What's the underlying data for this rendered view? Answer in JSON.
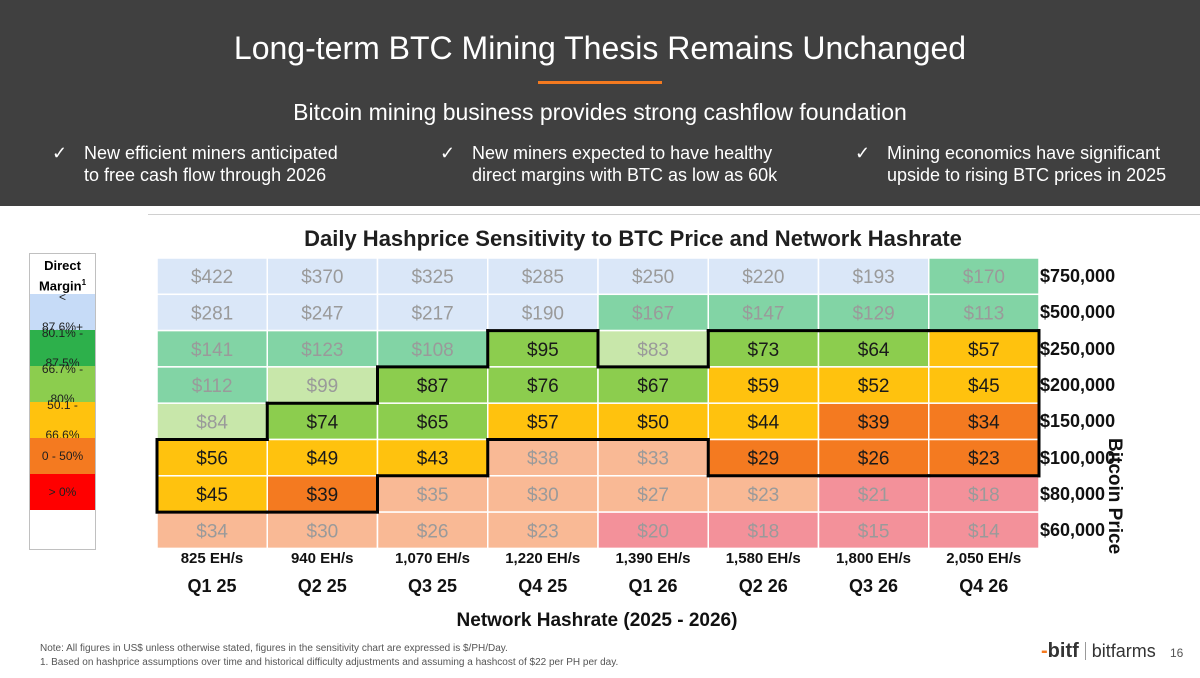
{
  "header": {
    "title": "Long-term BTC Mining Thesis Remains Unchanged",
    "subtitle": "Bitcoin mining business provides strong cashflow foundation",
    "bullets": [
      {
        "check": "✓",
        "line1": "New efficient miners anticipated",
        "line2": "to free cash flow through 2026"
      },
      {
        "check": "✓",
        "line1": "New miners expected to have healthy",
        "line2": "direct margins with BTC as low as 60k"
      },
      {
        "check": "✓",
        "line1": "Mining economics have significant",
        "line2": "upside to rising BTC prices in 2025"
      }
    ]
  },
  "legend": {
    "title_line1": "Direct",
    "title_line2": "Margin",
    "title_sup": "1",
    "items": [
      {
        "line1": "<",
        "line2": "87.6%+",
        "color": "#c6dbf7"
      },
      {
        "line1": "80.1% -",
        "line2": "87.5%",
        "color": "#2db04b"
      },
      {
        "line1": "66.7% -",
        "line2": "80%",
        "color": "#8ccd4e"
      },
      {
        "line1": "50.1 -",
        "line2": "66.6%",
        "color": "#ffc20e"
      },
      {
        "line1": "0 - 50%",
        "line2": "",
        "color": "#f47a20"
      },
      {
        "line1": "> 0%",
        "line2": "",
        "color": "#ff0000"
      }
    ]
  },
  "chart_data": {
    "type": "heatmap",
    "title": "Daily Hashprice Sensitivity to BTC Price and Network Hashrate",
    "xlabel": "Network Hashrate (2025 - 2026)",
    "ylabel": "Bitcoin Price",
    "x_hashrate": [
      "825 EH/s",
      "940 EH/s",
      "1,070 EH/s",
      "1,220 EH/s",
      "1,390 EH/s",
      "1,580 EH/s",
      "1,800 EH/s",
      "2,050 EH/s"
    ],
    "x_quarter": [
      "Q1 25",
      "Q2 25",
      "Q3 25",
      "Q4 25",
      "Q1 26",
      "Q2 26",
      "Q3 26",
      "Q4 26"
    ],
    "y_btc_price": [
      "$750,000",
      "$500,000",
      "$250,000",
      "$200,000",
      "$150,000",
      "$100,000",
      "$80,000",
      "$60,000"
    ],
    "values": [
      [
        422,
        370,
        325,
        285,
        250,
        220,
        193,
        170
      ],
      [
        281,
        247,
        217,
        190,
        167,
        147,
        129,
        113
      ],
      [
        141,
        123,
        108,
        95,
        83,
        73,
        64,
        57
      ],
      [
        112,
        99,
        87,
        76,
        67,
        59,
        52,
        45
      ],
      [
        84,
        74,
        65,
        57,
        50,
        44,
        39,
        34
      ],
      [
        56,
        49,
        43,
        38,
        33,
        29,
        26,
        23
      ],
      [
        45,
        39,
        35,
        30,
        27,
        23,
        21,
        18
      ],
      [
        34,
        30,
        26,
        23,
        20,
        18,
        15,
        14
      ]
    ],
    "value_prefix": "$",
    "highlighted_cells": [
      [
        5,
        0
      ],
      [
        6,
        0
      ],
      [
        4,
        1
      ],
      [
        5,
        1
      ],
      [
        6,
        1
      ],
      [
        3,
        2
      ],
      [
        4,
        2
      ],
      [
        5,
        2
      ],
      [
        2,
        3
      ],
      [
        3,
        3
      ],
      [
        4,
        3
      ],
      [
        3,
        4
      ],
      [
        4,
        4
      ],
      [
        2,
        5
      ],
      [
        3,
        5
      ],
      [
        4,
        5
      ],
      [
        5,
        5
      ],
      [
        2,
        6
      ],
      [
        3,
        6
      ],
      [
        4,
        6
      ],
      [
        5,
        6
      ],
      [
        2,
        7
      ],
      [
        3,
        7
      ],
      [
        4,
        7
      ],
      [
        5,
        7
      ]
    ],
    "cell_colors": [
      [
        "#dae7f8",
        "#dae7f8",
        "#dae7f8",
        "#dae7f8",
        "#dae7f8",
        "#dae7f8",
        "#dae7f8",
        "#82d4a5"
      ],
      [
        "#dae7f8",
        "#dae7f8",
        "#dae7f8",
        "#dae7f8",
        "#82d4a5",
        "#82d4a5",
        "#82d4a5",
        "#82d4a5"
      ],
      [
        "#82d4a5",
        "#82d4a5",
        "#82d4a5",
        "#8ccd4e",
        "#c8e7aa",
        "#8ccd4e",
        "#8ccd4e",
        "#ffc20e"
      ],
      [
        "#82d4a5",
        "#c8e7aa",
        "#8ccd4e",
        "#8ccd4e",
        "#8ccd4e",
        "#ffc20e",
        "#ffc20e",
        "#ffc20e"
      ],
      [
        "#c8e7aa",
        "#8ccd4e",
        "#8ccd4e",
        "#ffc20e",
        "#ffc20e",
        "#ffc20e",
        "#f47a20",
        "#f47a20"
      ],
      [
        "#ffc20e",
        "#ffc20e",
        "#ffc20e",
        "#f9b995",
        "#f9b995",
        "#f47a20",
        "#f47a20",
        "#f47a20"
      ],
      [
        "#ffc20e",
        "#f47a20",
        "#f9b995",
        "#f9b995",
        "#f9b995",
        "#f9b995",
        "#f3919a",
        "#f3919a"
      ],
      [
        "#f9b995",
        "#f9b995",
        "#f9b995",
        "#f9b995",
        "#f3919a",
        "#f3919a",
        "#f3919a",
        "#f3919a"
      ]
    ]
  },
  "footer": {
    "note": "Note: All figures in US$ unless otherwise stated, figures in the sensitivity chart are expressed is $/PH/Day.",
    "footnote": "1.     Based on hashprice assumptions over time and historical difficulty adjustments and assuming a hashcost of $22 per PH per day.",
    "logo_mark": "bitf",
    "logo_name": "bitfarms",
    "page": "16"
  }
}
